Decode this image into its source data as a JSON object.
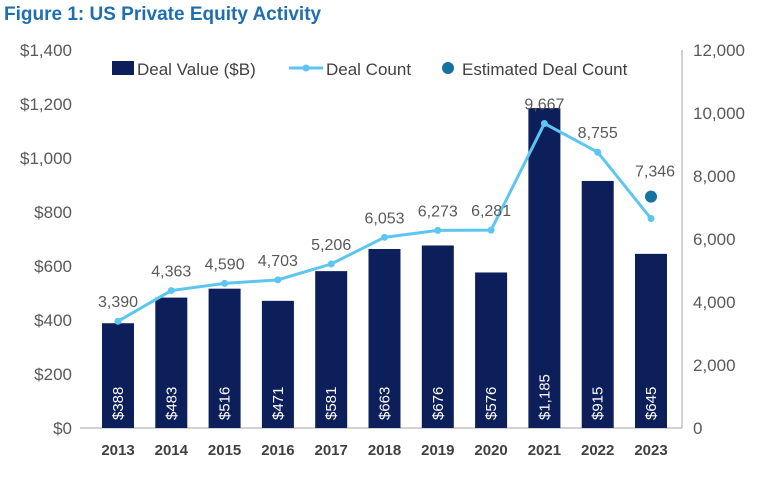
{
  "title": "Figure 1: US Private Equity Activity",
  "chart_data": {
    "type": "bar+line",
    "title": "Figure 1: US Private Equity Activity",
    "categories": [
      "2013",
      "2014",
      "2015",
      "2016",
      "2017",
      "2018",
      "2019",
      "2020",
      "2021",
      "2022",
      "2023"
    ],
    "series": [
      {
        "name": "Deal Value ($B)",
        "type": "bar",
        "axis": "left",
        "color": "#0c1f5b",
        "values": [
          388,
          483,
          516,
          471,
          581,
          663,
          676,
          576,
          1185,
          915,
          645
        ],
        "labels": [
          "$388",
          "$483",
          "$516",
          "$471",
          "$581",
          "$663",
          "$676",
          "$576",
          "$1,185",
          "$915",
          "$645"
        ]
      },
      {
        "name": "Deal Count",
        "type": "line",
        "axis": "right",
        "color": "#5cc6f0",
        "values": [
          3390,
          4363,
          4590,
          4703,
          5206,
          6053,
          6273,
          6281,
          9667,
          8755,
          6650
        ],
        "labels": [
          "3,390",
          "4,363",
          "4,590",
          "4,703",
          "5,206",
          "6,053",
          "6,273",
          "6,281",
          "9,667",
          "8,755",
          ""
        ]
      },
      {
        "name": "Estimated Deal Count",
        "type": "scatter",
        "axis": "right",
        "color": "#17729f",
        "x": "2023",
        "value": 7346,
        "label": "7,346"
      }
    ],
    "left_axis": {
      "ylim": [
        0,
        1400
      ],
      "ticks": [
        "$0",
        "$200",
        "$400",
        "$600",
        "$800",
        "$1,000",
        "$1,200",
        "$1,400"
      ]
    },
    "right_axis": {
      "ylim": [
        0,
        12000
      ],
      "ticks": [
        "0",
        "2,000",
        "4,000",
        "6,000",
        "8,000",
        "10,000",
        "12,000"
      ]
    },
    "grid": false,
    "legend": "top"
  }
}
